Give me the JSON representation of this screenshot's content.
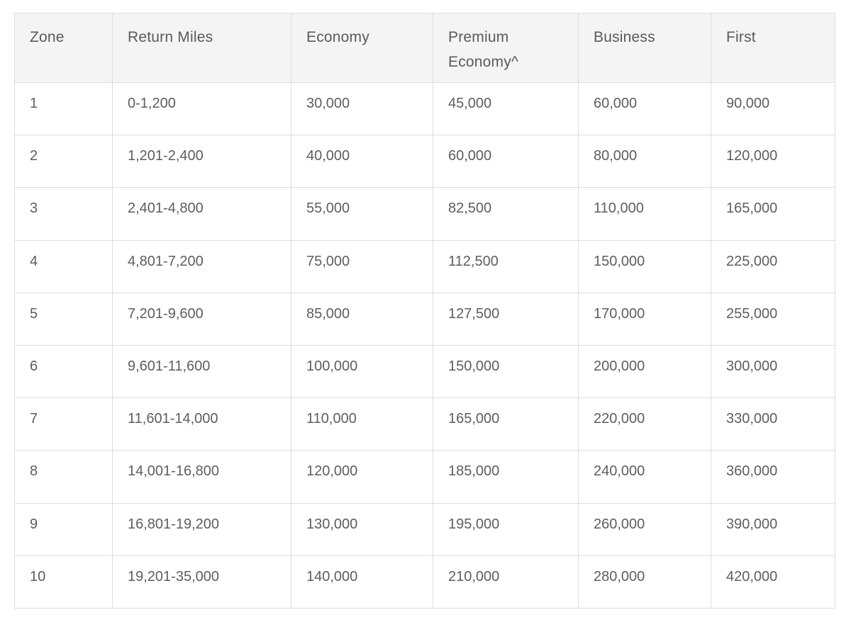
{
  "table": {
    "headers": [
      "Zone",
      "Return Miles",
      "Economy",
      "Premium Economy^",
      "Business",
      "First"
    ],
    "header_lines": {
      "premium_line1": "Premium",
      "premium_line2": "Economy^"
    },
    "rows": [
      [
        "1",
        "0-1,200",
        "30,000",
        "45,000",
        "60,000",
        "90,000"
      ],
      [
        "2",
        "1,201-2,400",
        "40,000",
        "60,000",
        "80,000",
        "120,000"
      ],
      [
        "3",
        "2,401-4,800",
        "55,000",
        "82,500",
        "110,000",
        "165,000"
      ],
      [
        "4",
        "4,801-7,200",
        "75,000",
        "112,500",
        "150,000",
        "225,000"
      ],
      [
        "5",
        "7,201-9,600",
        "85,000",
        "127,500",
        "170,000",
        "255,000"
      ],
      [
        "6",
        "9,601-11,600",
        "100,000",
        "150,000",
        "200,000",
        "300,000"
      ],
      [
        "7",
        "11,601-14,000",
        "110,000",
        "165,000",
        "220,000",
        "330,000"
      ],
      [
        "8",
        "14,001-16,800",
        "120,000",
        "185,000",
        "240,000",
        "360,000"
      ],
      [
        "9",
        "16,801-19,200",
        "130,000",
        "195,000",
        "260,000",
        "390,000"
      ],
      [
        "10",
        "19,201-35,000",
        "140,000",
        "210,000",
        "280,000",
        "420,000"
      ]
    ]
  },
  "colors": {
    "header_bg": "#f4f4f4",
    "border": "#dedede",
    "text": "#5a5a5a"
  }
}
